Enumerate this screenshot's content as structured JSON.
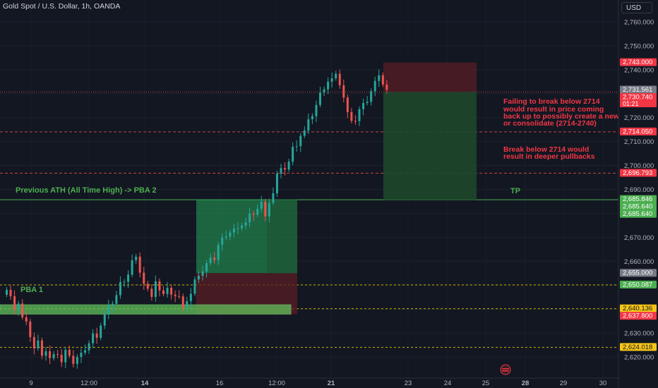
{
  "header": {
    "title": "Gold Spot / U.S. Dollar, 1h, OANDA",
    "currency": "USD"
  },
  "colors": {
    "background": "#131722",
    "up": "#26a69a",
    "up_alt": "#4caf50",
    "down": "#ef5350",
    "annotation_red": "#f23645",
    "annotation_green": "#4caf50",
    "yellow_dash": "#c8b400"
  },
  "annotations": {
    "ath_label": "Previous ATH (All Time High) -> PBA 2",
    "pba1_label": "PBA 1",
    "tp_label": "TP",
    "failing_text": [
      "Failing to break below 2714",
      "would result in price coming",
      "back up to possibly create a new ATH",
      "or consolidate (2714-2740)"
    ],
    "break_text": [
      "Break below 2714 would",
      "result in deeper pullbacks"
    ]
  },
  "chart_data": {
    "type": "candlestick",
    "title": "Gold Spot / U.S. Dollar, 1h, OANDA",
    "ylim": [
      2615,
      2768
    ],
    "y_ticks": [
      "2,620.000",
      "2,630.000",
      "2,640.000",
      "2,650.000",
      "2,660.000",
      "2,670.000",
      "2,680.000",
      "2,690.000",
      "2,700.000",
      "2,710.000",
      "2,720.000",
      "2,730.000",
      "2,740.000",
      "2,750.000",
      "2,760.000"
    ],
    "x_ticks": [
      "9",
      "12:00",
      "14",
      "16",
      "12:00",
      "21",
      "23",
      "24",
      "25",
      "28",
      "29",
      "30"
    ],
    "price_labels": [
      {
        "text": "2,743.000",
        "value": 2743.0,
        "style": "red"
      },
      {
        "text": "2,731.561",
        "value": 2731.561,
        "style": "gray"
      },
      {
        "text": "2,730.740",
        "value": 2730.74,
        "style": "red",
        "sub": "01:21"
      },
      {
        "text": "2,714.050",
        "value": 2714.05,
        "style": "red"
      },
      {
        "text": "2,696.793",
        "value": 2696.793,
        "style": "red"
      },
      {
        "text": "2,685.846",
        "value": 2685.846,
        "style": "green"
      },
      {
        "text": "2,685.640",
        "value": 2685.64,
        "style": "green"
      },
      {
        "text": "2,685.640",
        "value": 2685.64,
        "style": "green"
      },
      {
        "text": "2,655.000",
        "value": 2655.0,
        "style": "gray"
      },
      {
        "text": "2,650.087",
        "value": 2650.087,
        "style": "green"
      },
      {
        "text": "2,640.136",
        "value": 2640.136,
        "style": "yellow"
      },
      {
        "text": "2,637.800",
        "value": 2637.8,
        "style": "red"
      },
      {
        "text": "2,624.018",
        "value": 2624.018,
        "style": "yellow"
      }
    ],
    "levels": {
      "ath": 2685.7,
      "pba1_top": 2641.5,
      "pba1_bottom": 2638.2,
      "red_dotted": [
        2730.74,
        2714.05,
        2696.793
      ],
      "yellow_dashed": [
        2650.087,
        2640.136,
        2624.018
      ]
    },
    "trade_boxes": [
      {
        "type": "long",
        "entry": 2655.0,
        "target": 2685.846,
        "stop": 2637.8
      },
      {
        "type": "short_setup",
        "entry": 2730.74,
        "target": 2685.64,
        "stop": 2743.0
      }
    ],
    "series": [
      {
        "name": "XAUUSD 1h",
        "values_close": [
          2648.0,
          2645.4,
          2639.7,
          2642.3,
          2636.6,
          2634.8,
          2628.3,
          2623.6,
          2626.9,
          2620.5,
          2622.4,
          2619.5,
          2621.2,
          2620.9,
          2617.8,
          2623.0,
          2620.5,
          2617.1,
          2620.0,
          2621.8,
          2622.8,
          2625.7,
          2629.8,
          2628.0,
          2633.1,
          2637.8,
          2641.5,
          2642.2,
          2645.8,
          2651.3,
          2651.4,
          2654.4,
          2660.4,
          2661.9,
          2655.2,
          2650.6,
          2648.5,
          2645.1,
          2651.6,
          2647.8,
          2646.3,
          2648.9,
          2646.0,
          2645.4,
          2645.3,
          2640.6,
          2643.3,
          2646.4,
          2652.4,
          2653.9,
          2655.7,
          2659.2,
          2661.5,
          2660.5,
          2666.8,
          2669.8,
          2670.3,
          2672.0,
          2673.7,
          2673.8,
          2674.9,
          2676.3,
          2679.9,
          2679.4,
          2681.9,
          2684.8,
          2678.7,
          2684.4,
          2688.4,
          2696.6,
          2698.9,
          2698.3,
          2701.6,
          2707.8,
          2708.1,
          2712.4,
          2714.6,
          2719.3,
          2720.6,
          2725.3,
          2730.5,
          2731.8,
          2735.0,
          2736.4,
          2738.3,
          2733.5,
          2728.4,
          2722.3,
          2718.6,
          2718.5,
          2723.5,
          2726.1,
          2726.6,
          2731.0,
          2735.3,
          2737.7,
          2733.8,
          2731.6
        ]
      }
    ]
  }
}
